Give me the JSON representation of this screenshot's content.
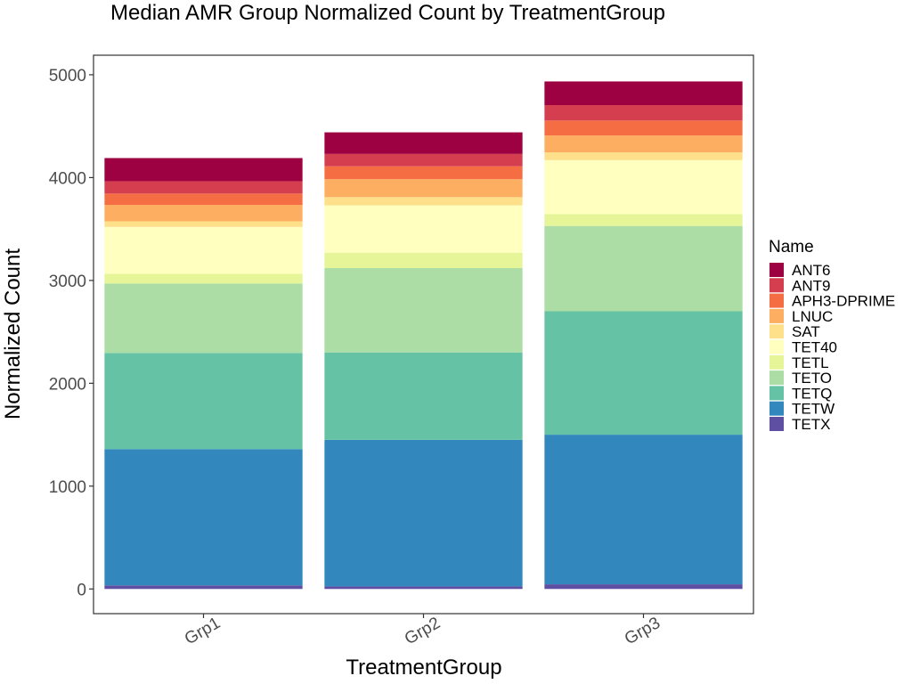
{
  "chart_data": {
    "type": "bar",
    "stacked": true,
    "title": "Median AMR Group Normalized Count by TreatmentGroup",
    "xlabel": "TreatmentGroup",
    "ylabel": "Normalized Count",
    "ylim": [
      -240,
      5190
    ],
    "yticks": [
      0,
      1000,
      2000,
      3000,
      4000,
      5000
    ],
    "grid": false,
    "legend": {
      "title": "Name",
      "position": "right"
    },
    "categories": [
      "Grp1",
      "Grp2",
      "Grp3"
    ],
    "series": [
      {
        "name": "TETX",
        "color": "#5E4FA2",
        "values": [
          35,
          25,
          45
        ]
      },
      {
        "name": "TETW",
        "color": "#3288BD",
        "values": [
          1325,
          1425,
          1455
        ]
      },
      {
        "name": "TETQ",
        "color": "#66C2A5",
        "values": [
          935,
          850,
          1200
        ]
      },
      {
        "name": "TETO",
        "color": "#ABDDA4",
        "values": [
          675,
          820,
          830
        ]
      },
      {
        "name": "TETL",
        "color": "#E6F598",
        "values": [
          95,
          150,
          115
        ]
      },
      {
        "name": "TET40",
        "color": "#FFFFBF",
        "values": [
          455,
          460,
          525
        ]
      },
      {
        "name": "SAT",
        "color": "#FEE08B",
        "values": [
          55,
          80,
          75
        ]
      },
      {
        "name": "LNUC",
        "color": "#FDAE61",
        "values": [
          160,
          175,
          165
        ]
      },
      {
        "name": "APH3-DPRIME",
        "color": "#F46D43",
        "values": [
          110,
          125,
          145
        ]
      },
      {
        "name": "ANT9",
        "color": "#D53E4F",
        "values": [
          120,
          120,
          150
        ]
      },
      {
        "name": "ANT6",
        "color": "#9E0142",
        "values": [
          225,
          210,
          230
        ]
      }
    ]
  }
}
